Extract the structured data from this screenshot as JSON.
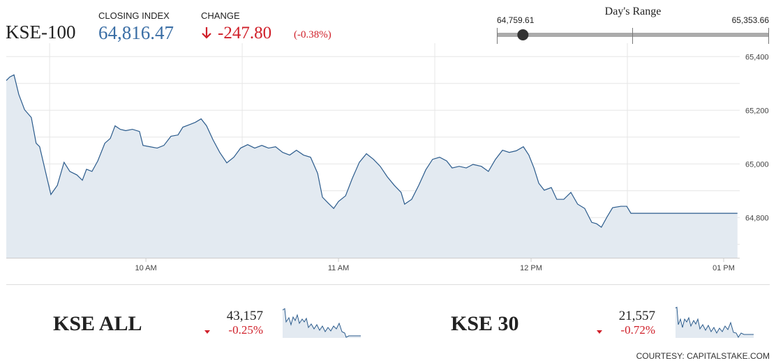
{
  "header": {
    "name": "KSE-100",
    "closing_label": "CLOSING INDEX",
    "closing_index": {
      "value": 64816.47,
      "label": "64,816.47"
    },
    "change_label": "CHANGE",
    "change": "-247.80",
    "change_pct": "(-0.38%)"
  },
  "range": {
    "title": "Day's Range",
    "low": {
      "value": 64759.61,
      "label": "64,759.61"
    },
    "high": {
      "value": 65353.66,
      "label": "65,353.66"
    }
  },
  "chart_data": {
    "type": "line",
    "color": "#2b5b8c",
    "fill": "#e3eaf1",
    "x": [
      556.5,
      557.6,
      558.9,
      560.4,
      562.2,
      564.3,
      565.8,
      566.9,
      568.7,
      570.4,
      572.4,
      574.5,
      576.3,
      578.5,
      580.2,
      581.5,
      583.2,
      585.0,
      587.2,
      588.9,
      590.4,
      592.0,
      593.7,
      595.8,
      598.0,
      599.1,
      601.3,
      603.5,
      605.6,
      607.8,
      610.0,
      611.5,
      613.7,
      615.4,
      617.2,
      618.9,
      620.9,
      623.0,
      625.2,
      627.4,
      629.5,
      631.7,
      633.9,
      636.1,
      638.2,
      640.4,
      642.6,
      644.8,
      646.9,
      649.1,
      651.3,
      653.5,
      655.0,
      656.7,
      658.5,
      660.0,
      662.2,
      664.3,
      666.5,
      668.7,
      670.9,
      673.0,
      675.2,
      677.4,
      679.5,
      680.6,
      682.8,
      685.0,
      687.2,
      689.3,
      691.5,
      693.7,
      695.4,
      697.6,
      699.8,
      701.9,
      704.5,
      706.7,
      708.9,
      711.1,
      713.2,
      715.4,
      717.6,
      719.3,
      720.9,
      722.4,
      724.1,
      726.3,
      728.0,
      730.2,
      732.4,
      734.5,
      736.7,
      738.9,
      740.4,
      741.9,
      743.7,
      745.4,
      748.0,
      749.8,
      751.1,
      784.3
    ],
    "values": [
      65311,
      65324,
      65332,
      65259,
      65202,
      65173,
      65077,
      65064,
      64972,
      64886,
      64920,
      65006,
      64972,
      64959,
      64939,
      64980,
      64972,
      65011,
      65077,
      65095,
      65142,
      65129,
      65124,
      65129,
      65121,
      65069,
      65064,
      65059,
      65069,
      65103,
      65108,
      65137,
      65147,
      65155,
      65168,
      65142,
      65090,
      65043,
      65004,
      65025,
      65059,
      65072,
      65059,
      65069,
      65059,
      65064,
      65043,
      65033,
      65051,
      65033,
      65025,
      64965,
      64876,
      64855,
      64834,
      64860,
      64881,
      64946,
      65006,
      65038,
      65017,
      64991,
      64952,
      64920,
      64894,
      64850,
      64868,
      64920,
      64978,
      65017,
      65025,
      65011,
      64985,
      64991,
      64985,
      64998,
      64991,
      64972,
      65017,
      65051,
      65043,
      65049,
      65064,
      65033,
      64985,
      64928,
      64902,
      64912,
      64868,
      64868,
      64894,
      64850,
      64834,
      64782,
      64777,
      64764,
      64803,
      64837,
      64842,
      64842,
      64816,
      64816
    ],
    "xlim": [
      556.5,
      785
    ],
    "xticks": [
      {
        "value": 600,
        "label": "10 AM"
      },
      {
        "value": 660,
        "label": "11 AM"
      },
      {
        "value": 720,
        "label": "12 PM"
      },
      {
        "value": 780,
        "label": "01 PM"
      }
    ],
    "x_gridlines": [
      570,
      630,
      690,
      750
    ],
    "ylim": [
      64650,
      65450
    ],
    "yticks": [
      {
        "value": 64800,
        "label": "64,800"
      },
      {
        "value": 65000,
        "label": "65,000"
      },
      {
        "value": 65200,
        "label": "65,200"
      },
      {
        "value": 65400,
        "label": "65,400"
      }
    ],
    "minor_yticks": [
      64700,
      64900,
      65100,
      65300
    ],
    "grid": true
  },
  "indices": [
    {
      "name": "KSE ALL",
      "value": "43,157",
      "change": "-0.25%"
    },
    {
      "name": "KSE 30",
      "value": "21,557",
      "change": "-0.72%"
    }
  ],
  "footer": {
    "courtesy": "COURTESY: CAPITALSTAKE.COM"
  }
}
